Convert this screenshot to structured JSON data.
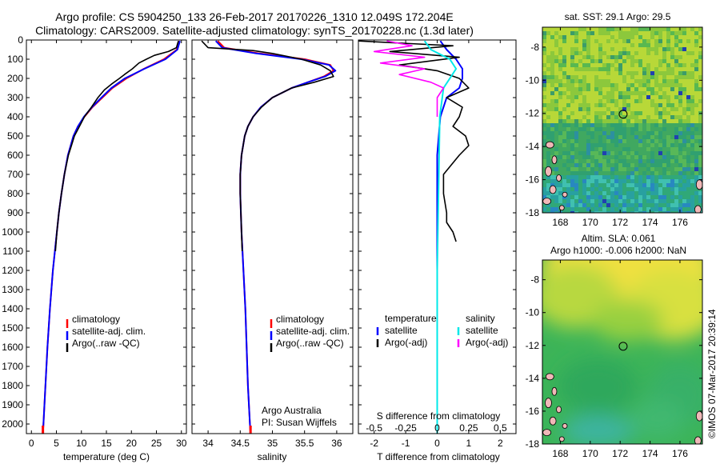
{
  "header": {
    "title_line1": "Argo profile: CS 5904250_133 26-Feb-2017 20170226_1310 12.049S 172.204E",
    "title_line2": "Climatology: CARS2009. Satellite-adjusted climatology: synTS_20170228.nc (1.3d later)"
  },
  "colors": {
    "climatology": "#ff0000",
    "satellite": "#0000ff",
    "argo": "#000000",
    "salinity_satellite": "#00e8e8",
    "salinity_argo": "#ff00ff"
  },
  "chart_data": [
    {
      "type": "line",
      "panel": "temperature",
      "xlabel": "temperature (deg C)",
      "xlim": [
        -1,
        31
      ],
      "xticks": [
        "0",
        "5",
        "10",
        "15",
        "20",
        "25",
        "30"
      ],
      "ylim": [
        0,
        2050
      ],
      "yticks": [
        "0",
        "100",
        "200",
        "300",
        "400",
        "500",
        "600",
        "700",
        "800",
        "900",
        "1000",
        "1100",
        "1200",
        "1300",
        "1400",
        "1500",
        "1600",
        "1700",
        "1800",
        "1900",
        "2000"
      ],
      "legend": [
        "climatology",
        "satellite-adj. clim.",
        "Argo(..raw -QC)"
      ],
      "series": [
        {
          "name": "climatology",
          "depth": [
            5,
            50,
            100,
            150,
            200,
            250,
            300,
            350,
            400,
            450,
            500,
            600,
            700,
            800,
            900,
            1000,
            1200,
            1400,
            1600,
            1800,
            2000,
            2050
          ],
          "values": [
            29.5,
            29.1,
            26.5,
            22.5,
            19.0,
            16.2,
            14.2,
            12.2,
            10.6,
            9.3,
            8.4,
            7.3,
            6.6,
            6.0,
            5.5,
            5.1,
            4.3,
            3.7,
            3.2,
            2.8,
            2.4,
            2.3
          ]
        },
        {
          "name": "satellite-adj. clim.",
          "depth": [
            5,
            50,
            100,
            150,
            200,
            250,
            300,
            350,
            400,
            450,
            500,
            600,
            700,
            800,
            900,
            1000,
            1200,
            1400,
            1600,
            1800,
            2000,
            2050
          ],
          "values": [
            29.7,
            29.2,
            26.8,
            22.6,
            18.7,
            16.0,
            14.0,
            12.1,
            10.5,
            9.3,
            8.4,
            7.3,
            6.6,
            6.0,
            5.5,
            5.1,
            4.3,
            3.7,
            3.2,
            2.8,
            2.4,
            2.3
          ]
        },
        {
          "name": "Argo(..raw -QC)",
          "depth": [
            5,
            40,
            60,
            80,
            100,
            120,
            150,
            180,
            200,
            230,
            260,
            300,
            350,
            400,
            450,
            500,
            550,
            600,
            700,
            800,
            900,
            1000,
            1100
          ],
          "values": [
            29.4,
            29.0,
            27.4,
            24.6,
            23.0,
            21.5,
            20.2,
            18.6,
            17.6,
            16.0,
            14.6,
            13.3,
            12.0,
            10.6,
            9.6,
            8.6,
            8.0,
            7.4,
            6.6,
            6.0,
            5.5,
            5.1,
            4.8
          ]
        }
      ]
    },
    {
      "type": "line",
      "panel": "salinity",
      "xlabel": "salinity",
      "xlim": [
        33.75,
        36.25
      ],
      "xticks": [
        "34",
        "34.5",
        "35",
        "35.5",
        "36"
      ],
      "ylim": [
        0,
        2050
      ],
      "legend": [
        "climatology",
        "satellite-adj. clim.",
        "Argo(..raw -QC)"
      ],
      "annotation": [
        "Argo Australia",
        "PI: Susan Wijffels"
      ],
      "series": [
        {
          "name": "climatology",
          "depth": [
            5,
            40,
            70,
            100,
            130,
            160,
            190,
            220,
            250,
            300,
            350,
            400,
            450,
            500,
            600,
            700,
            800,
            1000,
            1200,
            1400,
            1600,
            1800,
            2000,
            2050
          ],
          "values": [
            34.15,
            34.25,
            34.8,
            35.5,
            35.9,
            35.95,
            35.8,
            35.55,
            35.3,
            35.0,
            34.82,
            34.7,
            34.62,
            34.57,
            34.52,
            34.5,
            34.5,
            34.52,
            34.55,
            34.58,
            34.6,
            34.62,
            34.65,
            34.66
          ]
        },
        {
          "name": "satellite-adj. clim.",
          "depth": [
            5,
            40,
            70,
            100,
            130,
            160,
            190,
            220,
            250,
            300,
            350,
            400,
            450,
            500,
            600,
            700,
            800,
            1000,
            1200,
            1400,
            1600,
            1800,
            2000,
            2050
          ],
          "values": [
            34.12,
            34.22,
            34.75,
            35.45,
            35.88,
            35.98,
            35.82,
            35.55,
            35.3,
            35.0,
            34.82,
            34.7,
            34.62,
            34.57,
            34.52,
            34.5,
            34.5,
            34.52,
            34.55,
            34.58,
            34.6,
            34.62,
            34.65,
            34.66
          ]
        },
        {
          "name": "Argo(..raw -QC)",
          "depth": [
            5,
            40,
            55,
            70,
            100,
            130,
            160,
            190,
            220,
            250,
            300,
            350,
            400,
            450,
            500,
            600,
            700,
            800,
            1000,
            1100
          ],
          "values": [
            33.9,
            34.0,
            34.7,
            35.0,
            35.45,
            35.75,
            35.9,
            35.95,
            35.65,
            35.3,
            35.0,
            34.83,
            34.7,
            34.62,
            34.57,
            34.52,
            34.5,
            34.5,
            34.52,
            34.53
          ]
        }
      ]
    },
    {
      "type": "line",
      "panel": "difference",
      "xlabel": "T difference from climatology",
      "xlabel_top": "S difference from climatology",
      "xlim": [
        -2.5,
        2.5
      ],
      "xticks_T": [
        "-2",
        "-1",
        "0",
        "1",
        "2"
      ],
      "xticks_S": [
        "-0.5",
        "-0.25",
        "0",
        "0.25",
        "0.5"
      ],
      "ylim": [
        0,
        2050
      ],
      "legend": {
        "temperature": {
          "heading": "temperature",
          "items": [
            "satellite",
            "Argo(-adj)"
          ]
        },
        "salinity": {
          "heading": "salinity",
          "items": [
            "satellite",
            "Argo(-adj)"
          ]
        }
      },
      "series": [
        {
          "name": "temperature satellite",
          "depth": [
            5,
            50,
            100,
            150,
            200,
            250,
            300,
            400,
            600,
            800,
            1000,
            1500,
            2050
          ],
          "values": [
            0.1,
            0.3,
            0.6,
            0.8,
            0.8,
            0.7,
            0.3,
            0.1,
            0.0,
            0.0,
            0.0,
            0.0,
            0.0
          ]
        },
        {
          "name": "temperature Argo(-adj)",
          "depth": [
            5,
            30,
            60,
            90,
            130,
            160,
            200,
            250,
            300,
            350,
            400,
            450,
            500,
            550,
            600,
            700,
            800,
            900,
            950,
            1000,
            1050
          ],
          "values": [
            -2.5,
            0.5,
            -1.5,
            0.7,
            -1.2,
            0.0,
            0.7,
            1.0,
            0.3,
            0.8,
            0.7,
            0.5,
            0.9,
            1.0,
            0.7,
            0.2,
            0.2,
            0.3,
            0.3,
            0.5,
            0.6
          ]
        },
        {
          "name": "salinity satellite",
          "depth": [
            5,
            50,
            100,
            150,
            200,
            250,
            400,
            800,
            1200,
            2050
          ],
          "values": [
            -0.1,
            -0.05,
            0.1,
            0.15,
            0.1,
            0.05,
            0.02,
            0.01,
            0.0,
            0.0
          ]
        },
        {
          "name": "salinity Argo(-adj)",
          "depth": [
            5,
            30,
            60,
            90,
            120,
            150,
            180,
            220,
            250,
            300,
            400
          ],
          "values": [
            -0.4,
            -0.2,
            -0.5,
            -0.1,
            -0.45,
            -0.1,
            -0.3,
            -0.05,
            0.05,
            0.0,
            0.0
          ]
        }
      ]
    },
    {
      "type": "heatmap",
      "panel": "sst_map",
      "title": "sat. SST: 29.1  Argo: 29.5",
      "xlim": [
        166.8,
        177.5
      ],
      "ylim": [
        -18,
        -6.8
      ],
      "xticks": [
        "168",
        "170",
        "172",
        "174",
        "176"
      ],
      "yticks": [
        "-8",
        "-10",
        "-12",
        "-14",
        "-16",
        "-18"
      ],
      "float_position": [
        172.2,
        -12.05
      ]
    },
    {
      "type": "heatmap",
      "panel": "sla_map",
      "title_line1": "Altim. SLA: 0.061",
      "title_line2": "Argo h1000: -0.006 h2000: NaN",
      "xlim": [
        166.8,
        177.5
      ],
      "ylim": [
        -18,
        -6.8
      ],
      "xticks": [
        "168",
        "170",
        "172",
        "174",
        "176"
      ],
      "yticks": [
        "-8",
        "-10",
        "-12",
        "-14",
        "-16",
        "-18"
      ],
      "float_position": [
        172.2,
        -12.05
      ]
    }
  ],
  "footer": {
    "credit": "©IMOS 07-Mar-2017 20:39:14"
  }
}
